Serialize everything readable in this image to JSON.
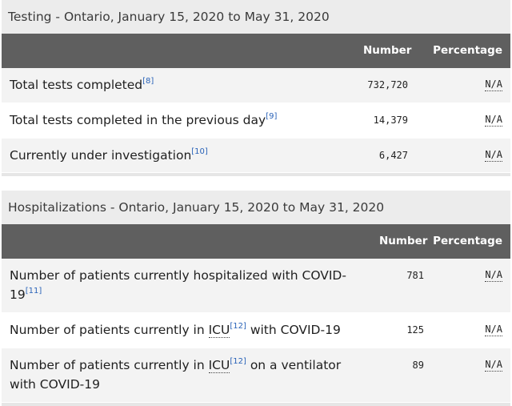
{
  "testing": {
    "caption": "Testing - Ontario, January 15, 2020 to May 31, 2020",
    "headers": {
      "number": "Number",
      "percentage": "Percentage"
    },
    "rows": [
      {
        "label": "Total tests completed",
        "ref": "[8]",
        "number": "732,720",
        "percentage": "N/A"
      },
      {
        "label": "Total tests completed in the previous day",
        "ref": "[9]",
        "number": "14,379",
        "percentage": "N/A"
      },
      {
        "label": "Currently under investigation",
        "ref": "[10]",
        "number": "6,427",
        "percentage": "N/A"
      }
    ]
  },
  "hospitalizations": {
    "caption": "Hospitalizations - Ontario, January 15, 2020 to May 31, 2020",
    "headers": {
      "number": "Number",
      "percentage": "Percentage"
    },
    "rows": [
      {
        "label_line1": "Number of patients currently hospitalized with COVID-",
        "label_line2": "19",
        "ref": "[11]",
        "number": "781",
        "percentage": "N/A"
      },
      {
        "label_pre": "Number of patients currently in ",
        "abbr": "ICU",
        "ref": "[12]",
        "label_post": " with COVID-19",
        "number": "125",
        "percentage": "N/A"
      },
      {
        "label_pre": "Number of patients currently in ",
        "abbr": "ICU",
        "ref": "[12]",
        "label_post": " on a ventilator",
        "label_line2": "with COVID-19",
        "number": "89",
        "percentage": "N/A"
      }
    ]
  }
}
